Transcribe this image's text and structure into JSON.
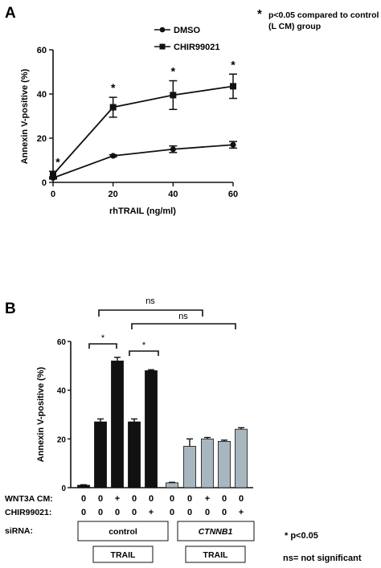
{
  "chart_data": [
    {
      "panel": "A",
      "type": "line",
      "x": [
        0,
        20,
        40,
        60
      ],
      "xticks": [
        "0",
        "20",
        "40",
        "60"
      ],
      "yticks": [
        "0",
        "20",
        "40",
        "60"
      ],
      "xlabel": "rhTRAIL (ng/ml)",
      "ylabel": "Annexin V-positive (%)",
      "xlim": [
        0,
        60
      ],
      "ylim": [
        0,
        60
      ],
      "legend_position": "top",
      "note_star": "*",
      "note_lines": [
        "p<0.05 compared to control",
        "(L CM) group"
      ],
      "series": [
        {
          "name": "DMSO",
          "marker": "circle",
          "values": [
            2,
            12,
            15,
            17
          ],
          "errors": [
            0.5,
            0.5,
            1.5,
            1.5
          ],
          "markers_sig": [
            "",
            "",
            "",
            ""
          ]
        },
        {
          "name": "CHIR99021",
          "marker": "square",
          "values": [
            3.5,
            34,
            39.5,
            43.5
          ],
          "errors": [
            1.5,
            4.5,
            6.5,
            5.5
          ],
          "markers_sig": [
            "*",
            "*",
            "*",
            "*"
          ]
        }
      ],
      "color": "#111111"
    },
    {
      "panel": "B",
      "type": "bar",
      "ylabel": "Annexin V-positive (%)",
      "ylim": [
        0,
        60
      ],
      "yticks": [
        "0",
        "20",
        "40",
        "60"
      ],
      "values": [
        1.0,
        27,
        52,
        27,
        48,
        2.0,
        17,
        20,
        19,
        24
      ],
      "errors": [
        0.2,
        1.2,
        1.5,
        1.2,
        0.4,
        0.2,
        3.0,
        0.6,
        0.5,
        0.6
      ],
      "colors": [
        "#111111",
        "#111111",
        "#111111",
        "#111111",
        "#111111",
        "#a8b6bf",
        "#a8b6bf",
        "#a8b6bf",
        "#a8b6bf",
        "#a8b6bf"
      ],
      "conditions": {
        "wnt3a_label": "WNT3A CM:",
        "wnt3a": [
          "0",
          "0",
          "+",
          "0",
          "0",
          "0",
          "0",
          "+",
          "0",
          "0"
        ],
        "chir_label": "CHIR99021:",
        "chir": [
          "0",
          "0",
          "0",
          "0",
          "+",
          "0",
          "0",
          "0",
          "0",
          "+"
        ],
        "sirna_label": "siRNA:",
        "groups": [
          "control",
          "CTNNB1"
        ],
        "trail": [
          "TRAIL",
          "TRAIL"
        ]
      },
      "sig_star": "*",
      "ns_label": "ns",
      "footnote_1": "* p<0.05",
      "footnote_2": "ns= not significant"
    }
  ],
  "labels": {
    "panel_a": "A",
    "panel_b": "B"
  }
}
